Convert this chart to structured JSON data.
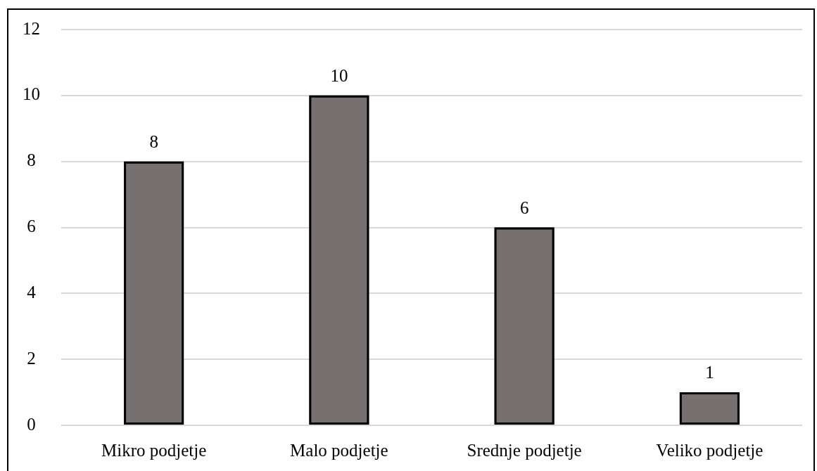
{
  "chart_data": {
    "type": "bar",
    "categories": [
      "Mikro podjetje",
      "Malo podjetje",
      "Srednje podjetje",
      "Veliko podjetje"
    ],
    "values": [
      8,
      10,
      6,
      1
    ],
    "color": "#767170",
    "ylim": [
      0,
      12
    ],
    "yticks": [
      0,
      2,
      4,
      6,
      8,
      10,
      12
    ],
    "grid": "y",
    "data_labels": true
  }
}
